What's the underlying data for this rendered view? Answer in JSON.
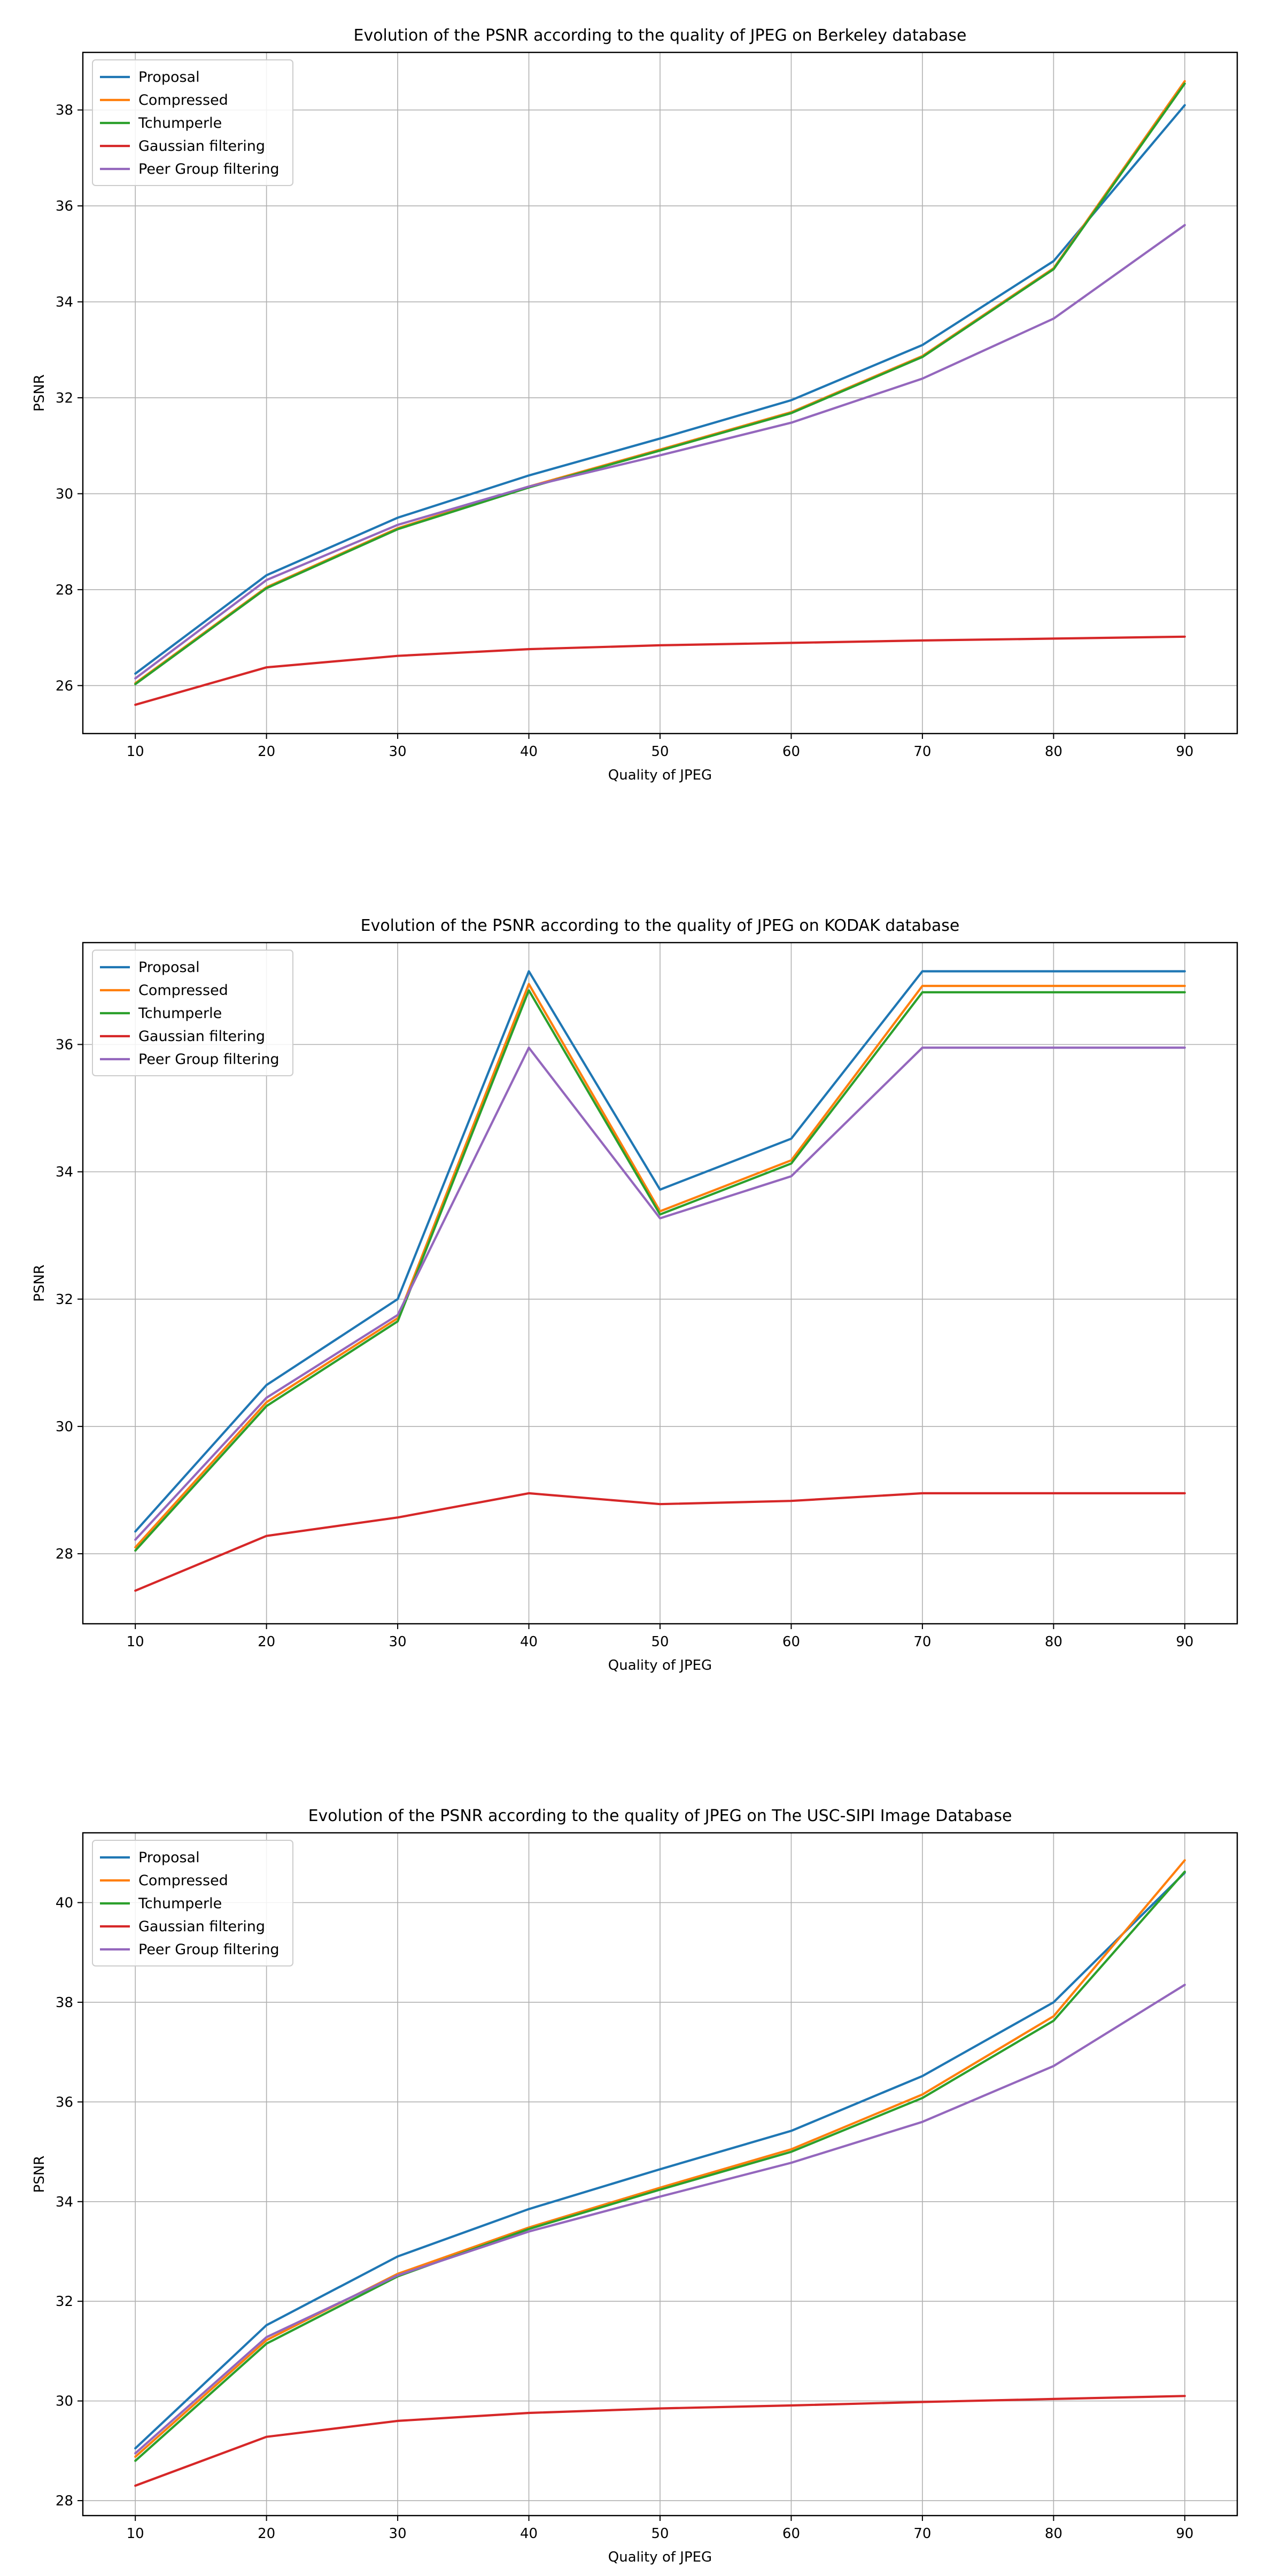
{
  "chart_data": [
    {
      "type": "line",
      "title": "Evolution of the PSNR according to the quality of JPEG on Berkeley database",
      "xlabel": "Quality of JPEG",
      "ylabel": "PSNR",
      "x": [
        10,
        20,
        30,
        40,
        50,
        60,
        70,
        80,
        90
      ],
      "xlim": [
        6,
        94
      ],
      "ylim": [
        25,
        39.2
      ],
      "yticks": [
        26,
        28,
        30,
        32,
        34,
        36,
        38
      ],
      "grid": true,
      "legend_position": "top-left",
      "series": [
        {
          "name": "Proposal",
          "color": "#1f77b4",
          "values": [
            26.25,
            28.3,
            29.5,
            30.38,
            31.15,
            31.95,
            33.1,
            34.85,
            38.1
          ]
        },
        {
          "name": "Compressed",
          "color": "#ff7f0e",
          "values": [
            26.05,
            28.05,
            29.28,
            30.15,
            30.92,
            31.7,
            32.87,
            34.7,
            38.6
          ]
        },
        {
          "name": "Tchumperle",
          "color": "#2ca02c",
          "values": [
            26.03,
            28.03,
            29.26,
            30.13,
            30.9,
            31.68,
            32.85,
            34.68,
            38.55
          ]
        },
        {
          "name": "Gaussian filtering",
          "color": "#d62728",
          "values": [
            25.6,
            26.38,
            26.62,
            26.76,
            26.84,
            26.89,
            26.94,
            26.98,
            27.02
          ]
        },
        {
          "name": "Peer Group filtering",
          "color": "#9467bd",
          "values": [
            26.15,
            28.2,
            29.35,
            30.15,
            30.8,
            31.48,
            32.4,
            33.65,
            35.6
          ]
        }
      ]
    },
    {
      "type": "line",
      "title": "Evolution of the PSNR according to the quality of JPEG on KODAK database",
      "xlabel": "Quality of JPEG",
      "ylabel": "PSNR",
      "x": [
        10,
        20,
        30,
        40,
        50,
        60,
        70,
        80,
        90
      ],
      "xlim": [
        6,
        94
      ],
      "ylim": [
        26.9,
        37.6
      ],
      "yticks": [
        28,
        30,
        32,
        34,
        36
      ],
      "grid": true,
      "legend_position": "top-left",
      "series": [
        {
          "name": "Proposal",
          "color": "#1f77b4",
          "values": [
            28.35,
            30.65,
            32.0,
            37.15,
            33.72,
            34.52,
            37.15,
            37.15,
            37.15
          ]
        },
        {
          "name": "Compressed",
          "color": "#ff7f0e",
          "values": [
            28.1,
            30.38,
            31.7,
            36.95,
            33.38,
            34.18,
            36.92,
            36.92,
            36.92
          ]
        },
        {
          "name": "Tchumperle",
          "color": "#2ca02c",
          "values": [
            28.05,
            30.32,
            31.65,
            36.85,
            33.33,
            34.13,
            36.82,
            36.82,
            36.82
          ]
        },
        {
          "name": "Gaussian filtering",
          "color": "#d62728",
          "values": [
            27.42,
            28.28,
            28.57,
            28.95,
            28.78,
            28.83,
            28.95,
            28.95,
            28.95
          ]
        },
        {
          "name": "Peer Group filtering",
          "color": "#9467bd",
          "values": [
            28.22,
            30.45,
            31.75,
            35.95,
            33.27,
            33.93,
            35.95,
            35.95,
            35.95
          ]
        }
      ]
    },
    {
      "type": "line",
      "title": "Evolution of the PSNR according to the quality of JPEG on The USC-SIPI Image Database",
      "xlabel": "Quality of JPEG",
      "ylabel": "PSNR",
      "x": [
        10,
        20,
        30,
        40,
        50,
        60,
        70,
        80,
        90
      ],
      "xlim": [
        6,
        94
      ],
      "ylim": [
        27.7,
        41.4
      ],
      "yticks": [
        28,
        30,
        32,
        34,
        36,
        38,
        40
      ],
      "grid": true,
      "legend_position": "top-left",
      "series": [
        {
          "name": "Proposal",
          "color": "#1f77b4",
          "values": [
            29.05,
            31.52,
            32.9,
            33.85,
            34.65,
            35.42,
            36.52,
            38.0,
            40.6
          ]
        },
        {
          "name": "Compressed",
          "color": "#ff7f0e",
          "values": [
            28.88,
            31.22,
            32.55,
            33.48,
            34.28,
            35.05,
            36.15,
            37.72,
            40.85
          ]
        },
        {
          "name": "Tchumperle",
          "color": "#2ca02c",
          "values": [
            28.8,
            31.15,
            32.5,
            33.45,
            34.24,
            35.0,
            36.08,
            37.63,
            40.62
          ]
        },
        {
          "name": "Gaussian filtering",
          "color": "#d62728",
          "values": [
            28.3,
            29.28,
            29.6,
            29.76,
            29.85,
            29.91,
            29.98,
            30.04,
            30.1
          ]
        },
        {
          "name": "Peer Group filtering",
          "color": "#9467bd",
          "values": [
            28.95,
            31.28,
            32.52,
            33.4,
            34.1,
            34.78,
            35.6,
            36.72,
            38.35
          ]
        }
      ]
    }
  ]
}
